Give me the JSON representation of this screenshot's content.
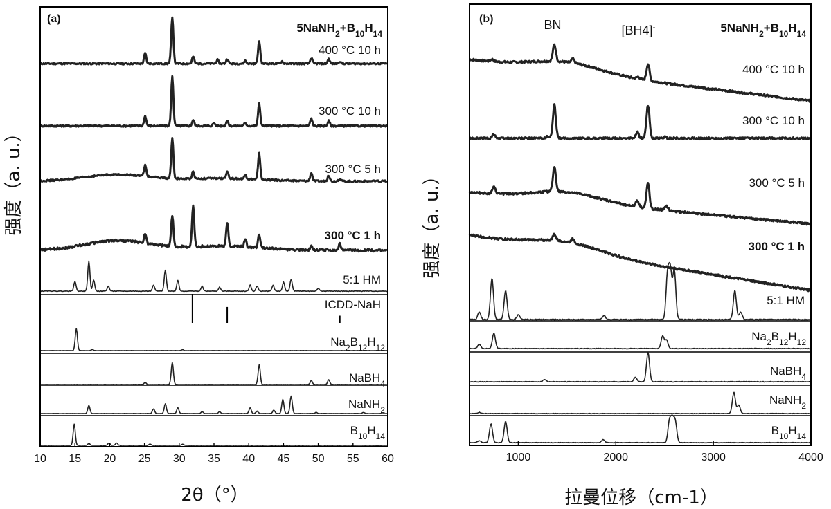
{
  "chart_data": [
    {
      "type": "line",
      "panel_label": "(a)",
      "title": "5NaNH2+B10H14",
      "xlabel": "2θ（°）",
      "ylabel": "强度（a. u.）",
      "xlim": [
        10,
        60
      ],
      "xticks": [
        10,
        15,
        20,
        25,
        30,
        35,
        40,
        45,
        50,
        55,
        60
      ],
      "series": [
        {
          "name": "400 °C 10 h",
          "bold": false,
          "peaks": [
            [
              25.1,
              0.22
            ],
            [
              29.0,
              1.0
            ],
            [
              32.0,
              0.15
            ],
            [
              35.5,
              0.08
            ],
            [
              36.9,
              0.1
            ],
            [
              39.5,
              0.06
            ],
            [
              41.5,
              0.48
            ],
            [
              44.8,
              0.05
            ],
            [
              49.0,
              0.12
            ],
            [
              51.5,
              0.1
            ],
            [
              53.1,
              0.05
            ]
          ],
          "background": "flat"
        },
        {
          "name": "300 °C 10 h",
          "bold": false,
          "peaks": [
            [
              25.1,
              0.2
            ],
            [
              29.0,
              1.0
            ],
            [
              32.0,
              0.12
            ],
            [
              35.0,
              0.06
            ],
            [
              36.9,
              0.1
            ],
            [
              39.5,
              0.06
            ],
            [
              41.5,
              0.45
            ],
            [
              49.0,
              0.15
            ],
            [
              51.5,
              0.1
            ]
          ],
          "background": "flat"
        },
        {
          "name": "300 °C 5 h",
          "bold": false,
          "peaks": [
            [
              25.1,
              0.25
            ],
            [
              29.0,
              0.85
            ],
            [
              32.0,
              0.16
            ],
            [
              36.9,
              0.14
            ],
            [
              39.5,
              0.08
            ],
            [
              41.5,
              0.55
            ],
            [
              49.0,
              0.18
            ],
            [
              51.5,
              0.12
            ],
            [
              53.1,
              0.05
            ]
          ],
          "background": "hump"
        },
        {
          "name": "300 °C 1 h",
          "bold": true,
          "peaks": [
            [
              25.1,
              0.14
            ],
            [
              29.0,
              0.45
            ],
            [
              32.0,
              0.6
            ],
            [
              36.9,
              0.35
            ],
            [
              39.5,
              0.12
            ],
            [
              41.5,
              0.2
            ],
            [
              49.0,
              0.06
            ],
            [
              53.1,
              0.1
            ]
          ],
          "background": "hump"
        },
        {
          "name": "5:1 HM",
          "bold": false,
          "peaks": [
            [
              15.0,
              0.2
            ],
            [
              17.0,
              0.6
            ],
            [
              17.7,
              0.22
            ],
            [
              19.8,
              0.1
            ],
            [
              26.3,
              0.12
            ],
            [
              28.0,
              0.42
            ],
            [
              29.8,
              0.22
            ],
            [
              33.3,
              0.1
            ],
            [
              35.8,
              0.08
            ],
            [
              40.2,
              0.12
            ],
            [
              41.2,
              0.1
            ],
            [
              43.5,
              0.12
            ],
            [
              45.0,
              0.18
            ],
            [
              46.1,
              0.24
            ],
            [
              50.0,
              0.06
            ]
          ],
          "background": "flat"
        },
        {
          "name": "ICDD-NaH",
          "bold": false,
          "sticks": [
            [
              31.9,
              1.0
            ],
            [
              36.9,
              0.55
            ],
            [
              53.1,
              0.25
            ]
          ]
        },
        {
          "name": "Na2B12H12",
          "bold": false,
          "peaks": [
            [
              15.2,
              1.0
            ],
            [
              17.5,
              0.05
            ],
            [
              30.5,
              0.04
            ]
          ],
          "background": "flat"
        },
        {
          "name": "NaBH4",
          "bold": false,
          "peaks": [
            [
              25.1,
              0.1
            ],
            [
              29.0,
              1.0
            ],
            [
              41.5,
              0.9
            ],
            [
              49.0,
              0.18
            ],
            [
              51.5,
              0.22
            ]
          ],
          "background": "flat"
        },
        {
          "name": "NaNH2",
          "bold": false,
          "peaks": [
            [
              17.0,
              0.35
            ],
            [
              26.3,
              0.2
            ],
            [
              28.0,
              0.42
            ],
            [
              29.8,
              0.25
            ],
            [
              33.3,
              0.08
            ],
            [
              35.8,
              0.08
            ],
            [
              40.2,
              0.25
            ],
            [
              41.2,
              0.1
            ],
            [
              43.6,
              0.15
            ],
            [
              44.9,
              0.6
            ],
            [
              46.1,
              0.75
            ],
            [
              49.7,
              0.05
            ],
            [
              56.5,
              0.05
            ]
          ],
          "background": "flat"
        },
        {
          "name": "B10H14",
          "bold": false,
          "peaks": [
            [
              14.9,
              0.85
            ],
            [
              17.0,
              0.08
            ],
            [
              19.9,
              0.1
            ],
            [
              21.0,
              0.1
            ],
            [
              25.8,
              0.05
            ],
            [
              30.5,
              0.05
            ]
          ],
          "background": "flat"
        }
      ]
    },
    {
      "type": "line",
      "panel_label": "(b)",
      "title": "5NaNH2+B10H14",
      "xlabel": "拉曼位移（cm-1）",
      "ylabel": "强度（a. u.）",
      "xlim": [
        500,
        4000
      ],
      "xticks": [
        1000,
        2000,
        3000,
        4000
      ],
      "annotations": [
        {
          "text": "BN",
          "x": 1370
        },
        {
          "text": "[BH4]",
          "sup": "-",
          "x": 2330
        }
      ],
      "series": [
        {
          "name": "400 °C 10 h",
          "bold": false,
          "peaks": [
            [
              730,
              0.05
            ],
            [
              1370,
              0.4
            ],
            [
              1560,
              0.1
            ],
            [
              2230,
              0.05
            ],
            [
              2330,
              0.4
            ]
          ],
          "background": "slope"
        },
        {
          "name": "300 °C 10 h",
          "bold": false,
          "peaks": [
            [
              750,
              0.1
            ],
            [
              1300,
              0.05
            ],
            [
              1370,
              0.8
            ],
            [
              2220,
              0.15
            ],
            [
              2330,
              0.8
            ],
            [
              2500,
              0.03
            ]
          ],
          "background": "flat"
        },
        {
          "name": "300 °C 5 h",
          "bold": false,
          "peaks": [
            [
              750,
              0.15
            ],
            [
              1370,
              0.6
            ],
            [
              2220,
              0.15
            ],
            [
              2330,
              0.6
            ],
            [
              2520,
              0.1
            ]
          ],
          "background": "slope"
        },
        {
          "name": "300 °C 1 h",
          "bold": true,
          "peaks": [
            [
              1370,
              0.15
            ],
            [
              1560,
              0.1
            ]
          ],
          "background": "slope"
        },
        {
          "name": "5:1 HM",
          "bold": false,
          "peaks": [
            [
              600,
              0.15
            ],
            [
              730,
              0.85
            ],
            [
              870,
              0.6
            ],
            [
              1000,
              0.1
            ],
            [
              1880,
              0.08
            ],
            [
              2530,
              0.9
            ],
            [
              2560,
              0.95
            ],
            [
              2600,
              1.0
            ],
            [
              3220,
              0.6
            ],
            [
              3280,
              0.15
            ]
          ],
          "background": "flat"
        },
        {
          "name": "Na2B12H12",
          "bold": false,
          "peaks": [
            [
              600,
              0.15
            ],
            [
              750,
              0.55
            ],
            [
              2480,
              0.45
            ],
            [
              2520,
              0.3
            ]
          ],
          "background": "flat"
        },
        {
          "name": "NaBH4",
          "bold": false,
          "peaks": [
            [
              1270,
              0.08
            ],
            [
              2200,
              0.15
            ],
            [
              2330,
              1.0
            ]
          ],
          "background": "flat"
        },
        {
          "name": "NaNH2",
          "bold": false,
          "peaks": [
            [
              600,
              0.05
            ],
            [
              3210,
              0.9
            ],
            [
              3260,
              0.35
            ]
          ],
          "background": "flat"
        },
        {
          "name": "B10H14",
          "bold": false,
          "peaks": [
            [
              600,
              0.08
            ],
            [
              720,
              0.75
            ],
            [
              870,
              0.85
            ],
            [
              1870,
              0.12
            ],
            [
              2550,
              0.85
            ],
            [
              2580,
              0.85
            ],
            [
              2610,
              0.8
            ]
          ],
          "background": "flat"
        }
      ]
    }
  ]
}
